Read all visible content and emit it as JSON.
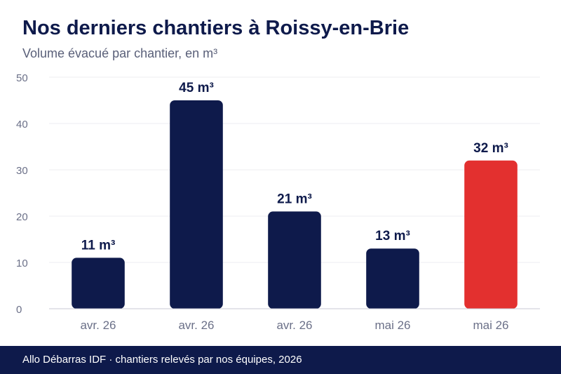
{
  "chart_data": {
    "type": "bar",
    "title": "Nos derniers chantiers à Roissy-en-Brie",
    "subtitle": "Volume évacué par chantier, en m³",
    "categories": [
      "avr. 26",
      "avr. 26",
      "avr. 26",
      "mai 26",
      "mai 26"
    ],
    "values": [
      11,
      45,
      21,
      13,
      32
    ],
    "data_labels": [
      "11 m³",
      "45 m³",
      "21 m³",
      "13 m³",
      "32 m³"
    ],
    "ylim": [
      0,
      50
    ],
    "yticks": [
      0,
      10,
      20,
      30,
      40,
      50
    ],
    "grid": true,
    "legend": "none",
    "colors": {
      "bar": "#0e1a4b",
      "highlight": "#e3302f",
      "highlight_index": 4,
      "grid": "#ececf1",
      "axis": "#c8cad6",
      "tick_label": "#6b7088",
      "data_label": "#0e1a4b"
    }
  },
  "footer": {
    "text": "Allo Débarras IDF · chantiers relevés par nos équipes, 2026"
  }
}
